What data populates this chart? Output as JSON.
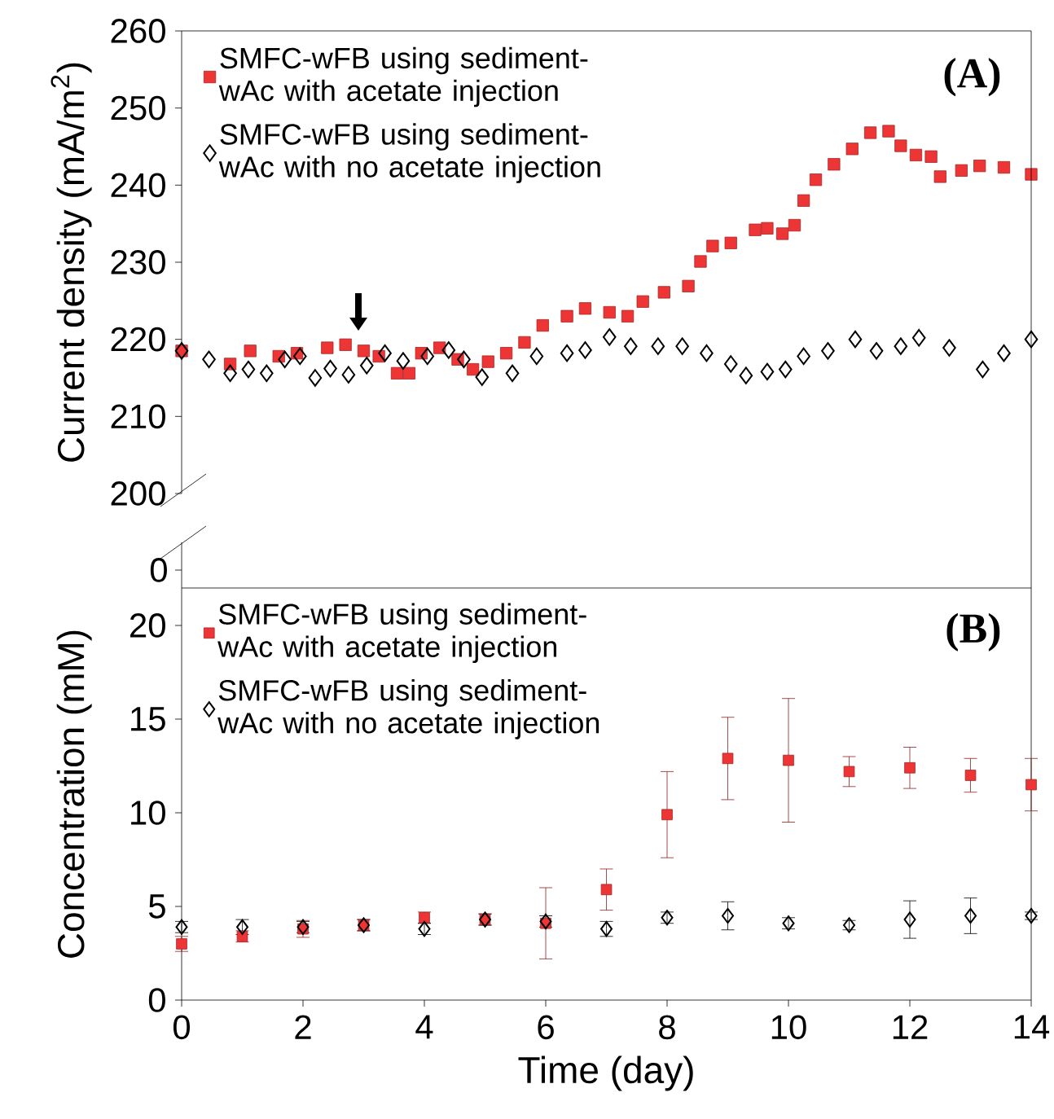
{
  "chart_data": [
    {
      "type": "scatter",
      "title": "(A)",
      "ylabel": "Current density (mA/m$^{2}$)",
      "xlim": [
        0,
        14
      ],
      "ylim": [
        200,
        260
      ],
      "yticks": [
        200,
        210,
        220,
        230,
        240,
        250,
        260
      ],
      "tick_labels": "y",
      "legend": "top left",
      "annotations": [
        "0"
      ],
      "series": [
        {
          "name": "SMFC-wFB using sediment-wAc with acetate injection",
          "color": "#ee3535",
          "marker": "square",
          "x": [
            0,
            0.8,
            1.13,
            1.6,
            1.9,
            2.4,
            2.7,
            3.0,
            3.25,
            3.55,
            3.75,
            3.95,
            4.25,
            4.55,
            4.8,
            5.05,
            5.35,
            5.65,
            5.95,
            6.35,
            6.65,
            7.05,
            7.35,
            7.6,
            7.95,
            8.35,
            8.55,
            8.75,
            9.05,
            9.45,
            9.65,
            9.9,
            10.1,
            10.25,
            10.45,
            10.75,
            11.05,
            11.35,
            11.65,
            11.85,
            12.1,
            12.35,
            12.5,
            12.85,
            13.15,
            13.55,
            14
          ],
          "values": [
            218.5,
            216.8,
            218.5,
            217.8,
            218.2,
            218.9,
            219.3,
            218.5,
            217.8,
            215.6,
            215.6,
            218.2,
            218.9,
            217.4,
            216.1,
            217.1,
            218.2,
            219.6,
            221.8,
            223.0,
            224.0,
            223.5,
            223.0,
            224.9,
            226.1,
            226.9,
            230.1,
            232.1,
            232.5,
            234.2,
            234.4,
            233.7,
            234.8,
            238.0,
            240.7,
            242.7,
            244.7,
            246.8,
            247.0,
            245.1,
            243.9,
            243.7,
            241.1,
            241.9,
            242.5,
            242.3,
            241.4
          ]
        },
        {
          "name": "SMFC-wFB using sediment-wAc with no acetate injection",
          "color": "#000000",
          "marker": "diamond",
          "x": [
            0,
            0.45,
            0.8,
            1.1,
            1.4,
            1.7,
            1.95,
            2.2,
            2.45,
            2.75,
            3.05,
            3.35,
            3.65,
            4.05,
            4.4,
            4.65,
            4.95,
            5.45,
            5.85,
            6.35,
            6.65,
            7.05,
            7.4,
            7.85,
            8.25,
            8.65,
            9.05,
            9.3,
            9.65,
            9.95,
            10.25,
            10.65,
            11.1,
            11.45,
            11.85,
            12.15,
            12.65,
            13.2,
            13.55,
            14
          ],
          "values": [
            218.5,
            217.4,
            215.6,
            216.1,
            215.6,
            217.4,
            217.8,
            215.0,
            216.2,
            215.4,
            216.6,
            218.2,
            217.2,
            217.8,
            218.6,
            217.4,
            215.1,
            215.6,
            217.8,
            218.2,
            218.6,
            220.3,
            219.1,
            219.1,
            219.1,
            218.2,
            216.8,
            215.3,
            215.8,
            216.1,
            217.8,
            218.5,
            220.0,
            218.5,
            219.1,
            220.2,
            218.9,
            216.1,
            218.2,
            220.0
          ]
        }
      ]
    },
    {
      "type": "scatter",
      "title": "(B)",
      "xlabel": "Time (day)",
      "ylabel": "Concentration (mM)",
      "xlim": [
        0,
        14
      ],
      "ylim": [
        0,
        22
      ],
      "xticks": [
        0,
        2,
        4,
        6,
        8,
        10,
        12,
        14
      ],
      "yticks": [
        0,
        5,
        10,
        15,
        20
      ],
      "legend": "top left",
      "series": [
        {
          "name": "SMFC-wFB using sediment-wAc with acetate injection",
          "color": "#ee3535",
          "marker": "square",
          "x": [
            0,
            1,
            2,
            3,
            4,
            5,
            6,
            7,
            8,
            9,
            10,
            11,
            12,
            13,
            14
          ],
          "values": [
            3.0,
            3.4,
            3.8,
            4.0,
            4.4,
            4.3,
            4.1,
            5.9,
            9.9,
            12.9,
            12.8,
            12.2,
            12.4,
            12.0,
            11.5
          ],
          "errors": [
            0.4,
            0.3,
            0.45,
            0.3,
            0.3,
            0.3,
            1.9,
            1.1,
            2.3,
            2.2,
            3.3,
            0.8,
            1.1,
            0.9,
            1.4
          ]
        },
        {
          "name": "SMFC-wFB using sediment-wAc with no acetate injection",
          "color": "#000000",
          "marker": "diamond",
          "x": [
            0,
            1,
            2,
            3,
            4,
            5,
            6,
            7,
            8,
            9,
            10,
            11,
            12,
            13,
            14
          ],
          "values": [
            3.9,
            3.9,
            3.9,
            4.0,
            3.8,
            4.3,
            4.2,
            3.8,
            4.4,
            4.5,
            4.1,
            4.0,
            4.3,
            4.5,
            4.5
          ],
          "errors": [
            0.3,
            0.4,
            0.3,
            0.3,
            0.3,
            0.3,
            0.3,
            0.4,
            0.3,
            0.75,
            0.3,
            0.25,
            1.0,
            0.95,
            0.2
          ]
        }
      ]
    }
  ]
}
